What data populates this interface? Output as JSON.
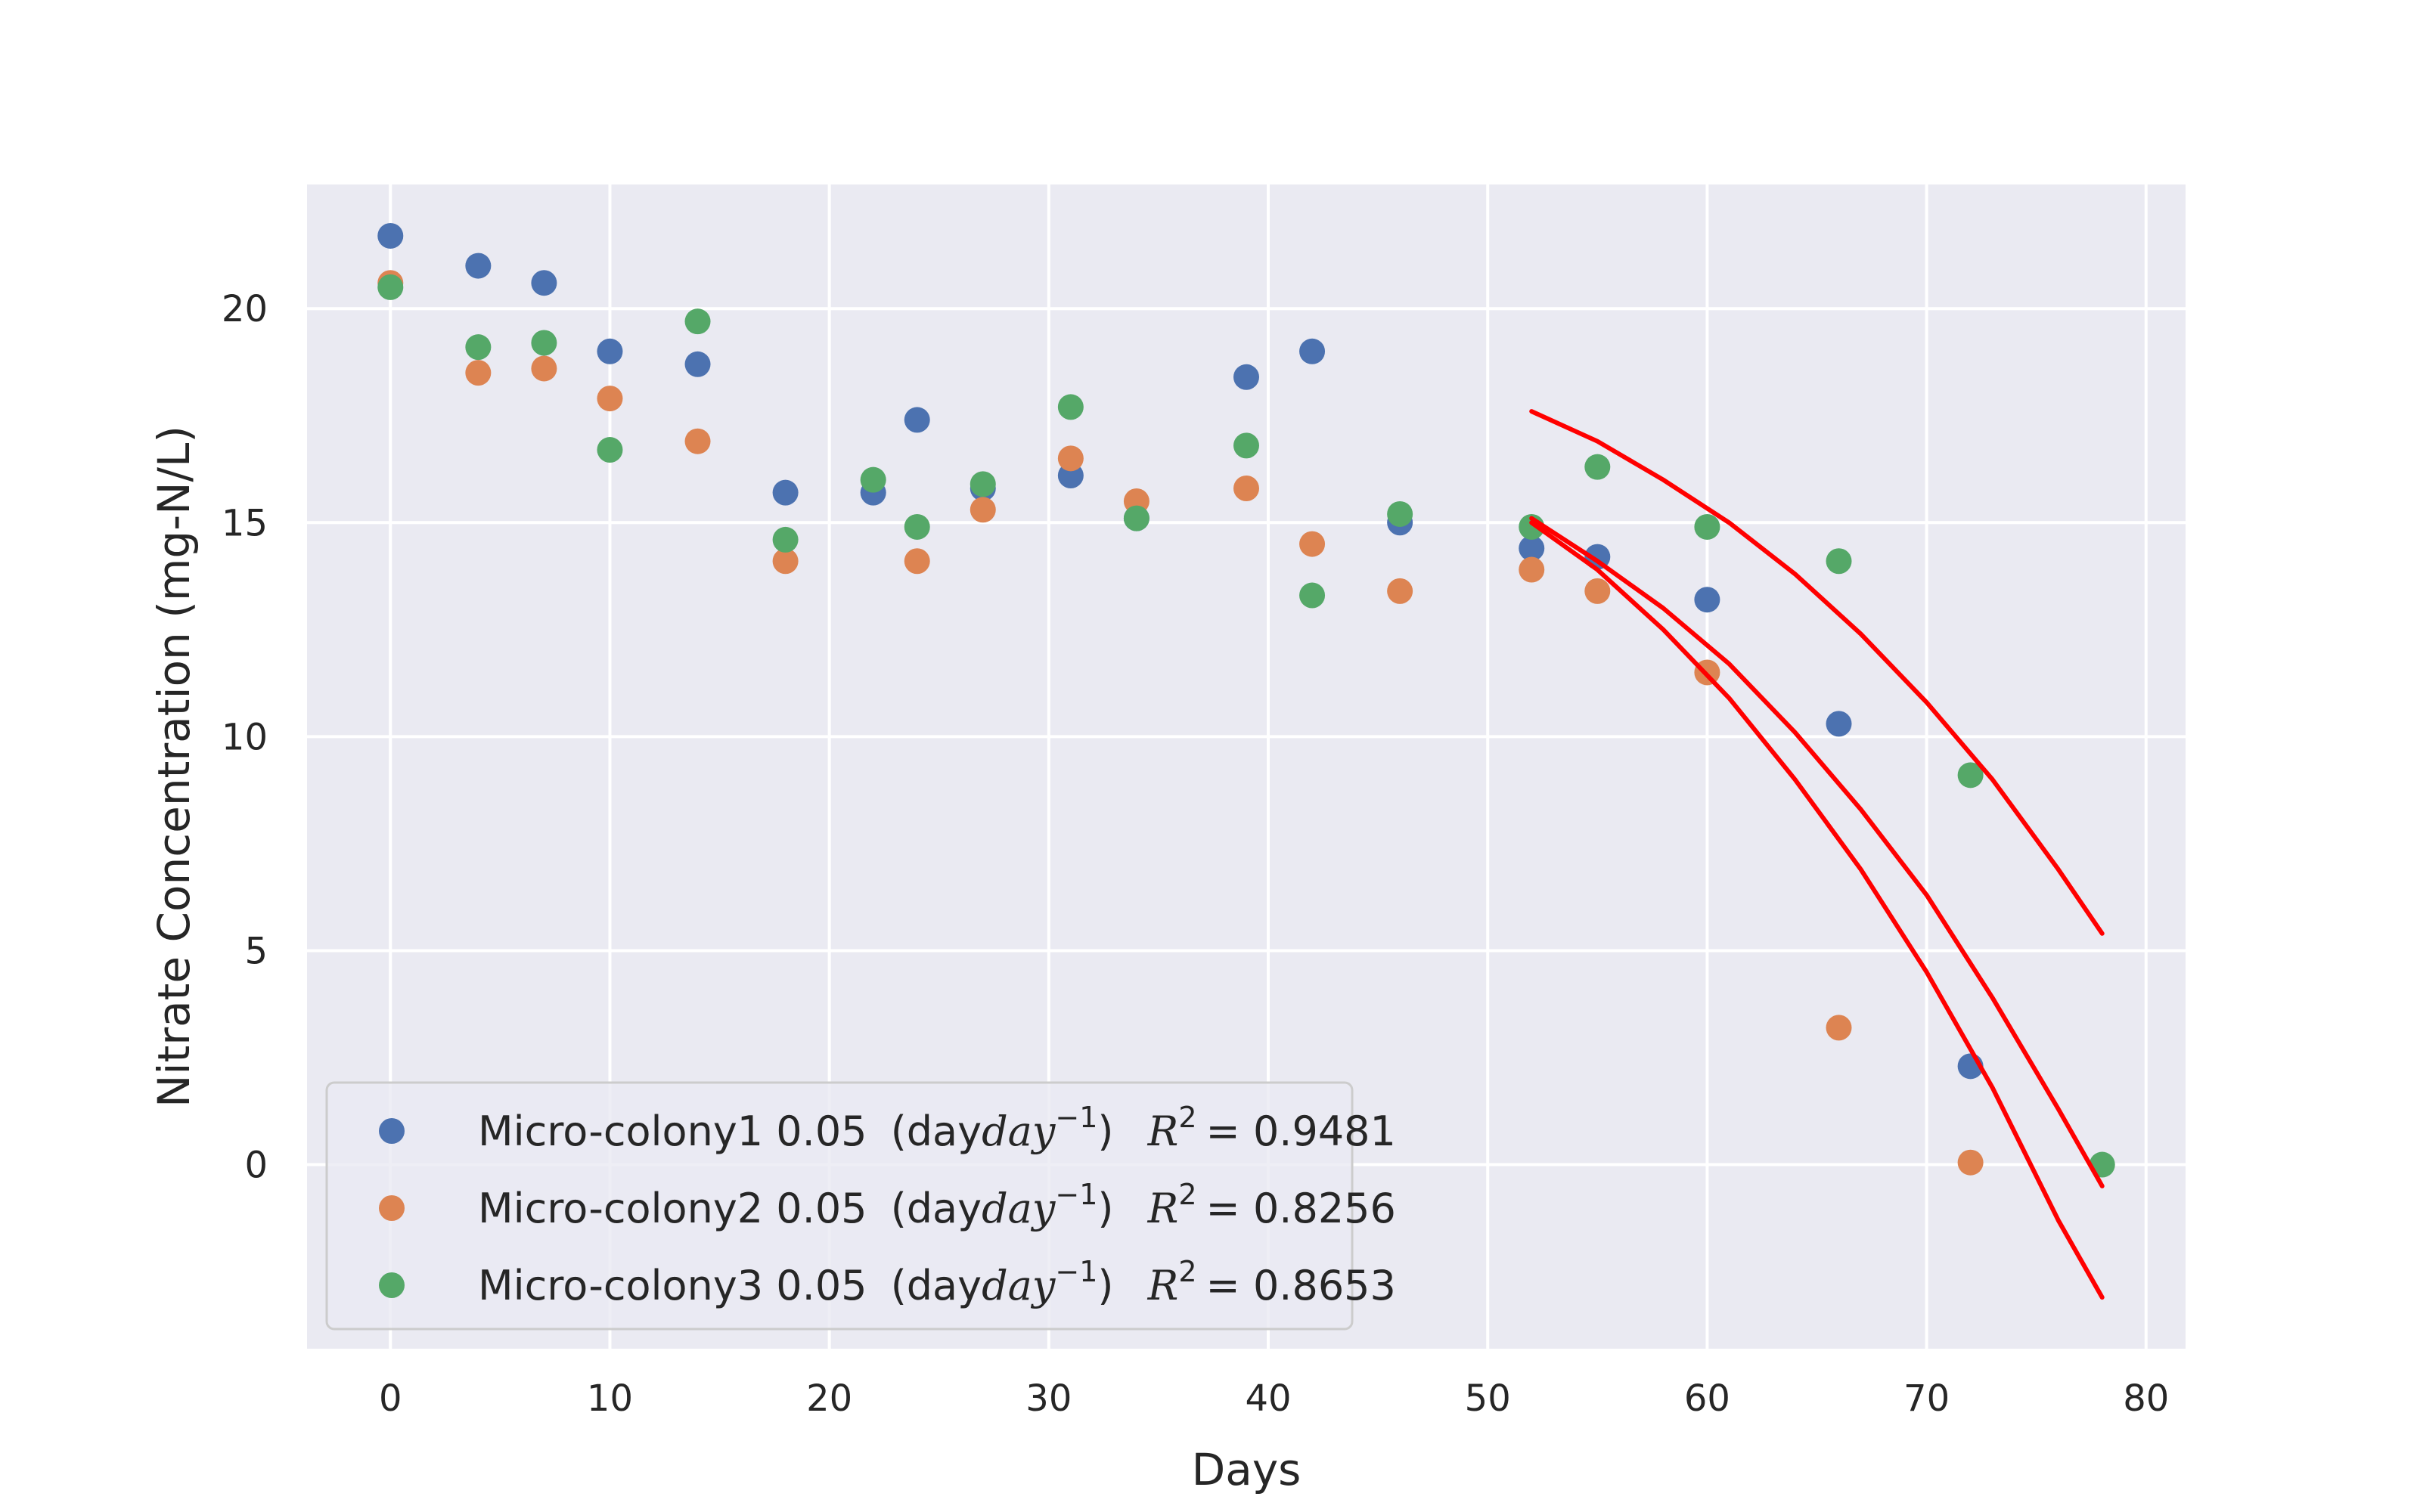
{
  "chart_data": {
    "type": "scatter",
    "xlabel": "Days",
    "ylabel": "Nitrate Concentration (mg-N/L)",
    "xlim": [
      -3.8,
      81.8
    ],
    "ylim": [
      -4.3,
      22.9
    ],
    "xticks": [
      0,
      10,
      20,
      30,
      40,
      50,
      60,
      70,
      80
    ],
    "yticks": [
      0,
      5,
      10,
      15,
      20
    ],
    "grid": true,
    "legend_position": "lower-left",
    "background": "#eaeaf2",
    "series": [
      {
        "name": "Micro-colony1 0.05 (day^-1) R^2 = 0.9481",
        "legend_label": "Micro-colony1 0.05",
        "rate_unit": "(day",
        "rate_exp": "−1",
        "rate_close": ")",
        "r2_var": "R",
        "r2_exp": "2",
        "r2_value": "= 0.9481",
        "color": "#4c72b0",
        "x": [
          0,
          4,
          7,
          10,
          14,
          18,
          22,
          24,
          27,
          31,
          34,
          39,
          42,
          46,
          52,
          55,
          60,
          66,
          72
        ],
        "y": [
          21.7,
          21.0,
          20.6,
          19.0,
          18.7,
          15.7,
          15.7,
          17.4,
          15.8,
          16.1,
          15.1,
          18.4,
          19.0,
          15.0,
          14.4,
          14.2,
          13.2,
          10.3,
          2.3
        ]
      },
      {
        "name": "Micro-colony2 0.05 (day^-1) R^2 = 0.8256",
        "legend_label": "Micro-colony2 0.05",
        "rate_unit": "(day",
        "rate_exp": "−1",
        "rate_close": ")",
        "r2_var": "R",
        "r2_exp": "2",
        "r2_value": "= 0.8256",
        "color": "#dd8452",
        "x": [
          0,
          4,
          7,
          10,
          14,
          18,
          24,
          27,
          31,
          34,
          39,
          42,
          46,
          52,
          55,
          60,
          66,
          72
        ],
        "y": [
          20.6,
          18.5,
          18.6,
          17.9,
          16.9,
          14.1,
          14.1,
          15.3,
          16.5,
          15.5,
          15.8,
          14.5,
          13.4,
          13.9,
          13.4,
          11.5,
          3.2,
          0.05
        ]
      },
      {
        "name": "Micro-colony3 0.05 (day^-1) R^2 = 0.8653",
        "legend_label": "Micro-colony3 0.05",
        "rate_unit": "(day",
        "rate_exp": "−1",
        "rate_close": ")",
        "r2_var": "R",
        "r2_exp": "2",
        "r2_value": "= 0.8653",
        "color": "#55a868",
        "x": [
          0,
          4,
          7,
          10,
          14,
          18,
          22,
          24,
          27,
          31,
          34,
          39,
          42,
          46,
          52,
          55,
          60,
          66,
          72,
          78
        ],
        "y": [
          20.5,
          19.1,
          19.2,
          16.7,
          19.7,
          14.6,
          16.0,
          14.9,
          15.9,
          17.7,
          15.1,
          16.8,
          13.3,
          15.2,
          14.9,
          16.3,
          14.9,
          14.1,
          9.1,
          0.0
        ]
      }
    ],
    "fit_curves": {
      "color": "#ff0000",
      "curves": [
        {
          "x": [
            52,
            55,
            58,
            61,
            64,
            67,
            70,
            73,
            76,
            78
          ],
          "y": [
            17.6,
            16.9,
            16.0,
            15.0,
            13.8,
            12.4,
            10.8,
            9.0,
            6.9,
            5.4
          ]
        },
        {
          "x": [
            52,
            55,
            58,
            61,
            64,
            67,
            70,
            73,
            76,
            78
          ],
          "y": [
            15.1,
            14.1,
            13.0,
            11.7,
            10.1,
            8.3,
            6.3,
            3.9,
            1.3,
            -0.5
          ]
        },
        {
          "x": [
            52,
            55,
            58,
            61,
            64,
            67,
            70,
            73,
            76,
            78
          ],
          "y": [
            15.0,
            13.9,
            12.5,
            10.9,
            9.0,
            6.9,
            4.5,
            1.8,
            -1.3,
            -3.1
          ]
        }
      ]
    }
  }
}
